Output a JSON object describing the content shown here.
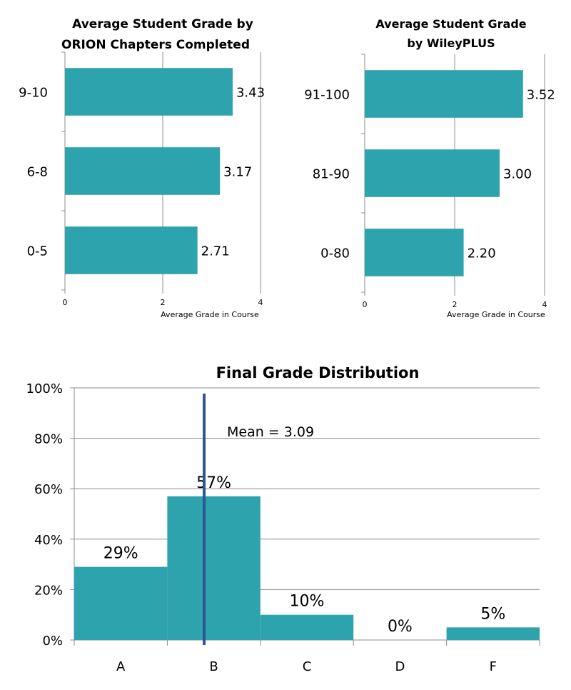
{
  "colors": {
    "bar": "#2ca3ad",
    "mean_line": "#2f5597",
    "grid": "#8c8c8c"
  },
  "chart_data": [
    {
      "type": "bar",
      "orientation": "horizontal",
      "title": [
        "Average Student Grade by",
        "ORION Chapters Completed"
      ],
      "xlabel": "Average Grade in Course",
      "ylabel": "",
      "categories": [
        "9-10",
        "6-8",
        "0-5"
      ],
      "values": [
        3.43,
        3.17,
        2.71
      ],
      "value_labels": [
        "3.43",
        "3.17",
        "2.71"
      ],
      "xlim": [
        0,
        4
      ],
      "xticks": [
        "0",
        "2",
        "4"
      ],
      "grid": true
    },
    {
      "type": "bar",
      "orientation": "horizontal",
      "title": [
        "Average Student Grade",
        "by WileyPLUS"
      ],
      "xlabel": "Average Grade in Course",
      "ylabel": "",
      "categories": [
        "91-100",
        "81-90",
        "0-80"
      ],
      "values": [
        3.52,
        3.0,
        2.2
      ],
      "value_labels": [
        "3.52",
        "3.00",
        "2.20"
      ],
      "xlim": [
        0,
        4
      ],
      "xticks": [
        "0",
        "2",
        "4"
      ],
      "grid": true
    },
    {
      "type": "bar",
      "orientation": "vertical",
      "title": "Final Grade Distribution",
      "xlabel": "",
      "ylabel": "",
      "categories": [
        "A",
        "B",
        "C",
        "D",
        "F"
      ],
      "values": [
        29,
        57,
        10,
        0,
        5
      ],
      "value_labels": [
        "29%",
        "57%",
        "10%",
        "0%",
        "5%"
      ],
      "ylim": [
        0,
        100
      ],
      "yticks": [
        "0%",
        "20%",
        "40%",
        "60%",
        "80%",
        "100%"
      ],
      "mean": 3.09,
      "mean_label": "Mean = 3.09",
      "grid": true
    }
  ]
}
